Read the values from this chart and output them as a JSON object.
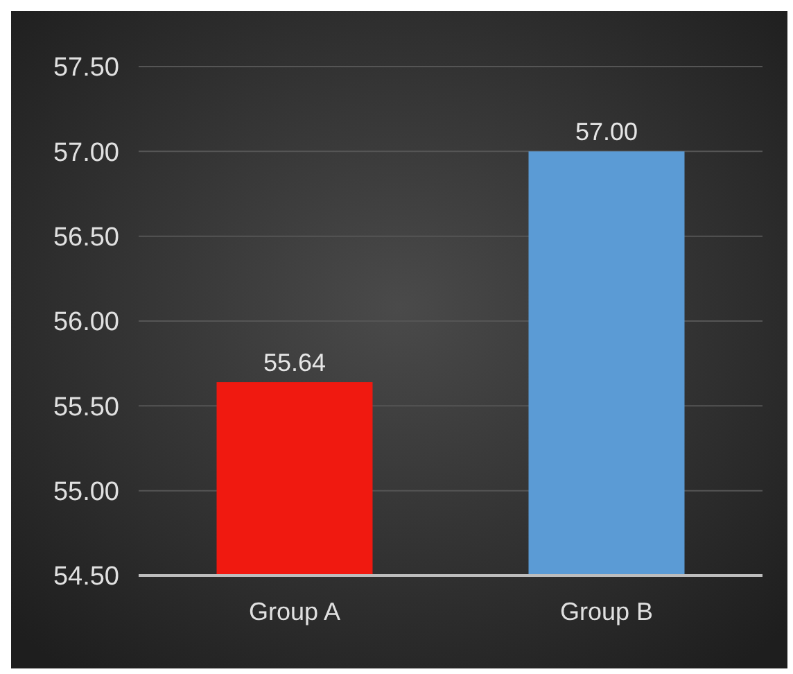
{
  "chart_data": {
    "type": "bar",
    "categories": [
      "Group A",
      "Group B"
    ],
    "values": [
      55.64,
      57.0
    ],
    "colors": [
      "#f01910",
      "#5b9bd5"
    ],
    "value_labels": [
      "55.64",
      "57.00"
    ],
    "ylim": [
      54.5,
      57.5
    ],
    "yticks": [
      {
        "value": 54.5,
        "label": "54.50"
      },
      {
        "value": 55,
        "label": "55.00"
      },
      {
        "value": 55.5,
        "label": "55.50"
      },
      {
        "value": 56,
        "label": "56.00"
      },
      {
        "value": 56.5,
        "label": "56.50"
      },
      {
        "value": 57,
        "label": "57.00"
      },
      {
        "value": 57.5,
        "label": "57.50"
      }
    ],
    "grid": "y"
  }
}
